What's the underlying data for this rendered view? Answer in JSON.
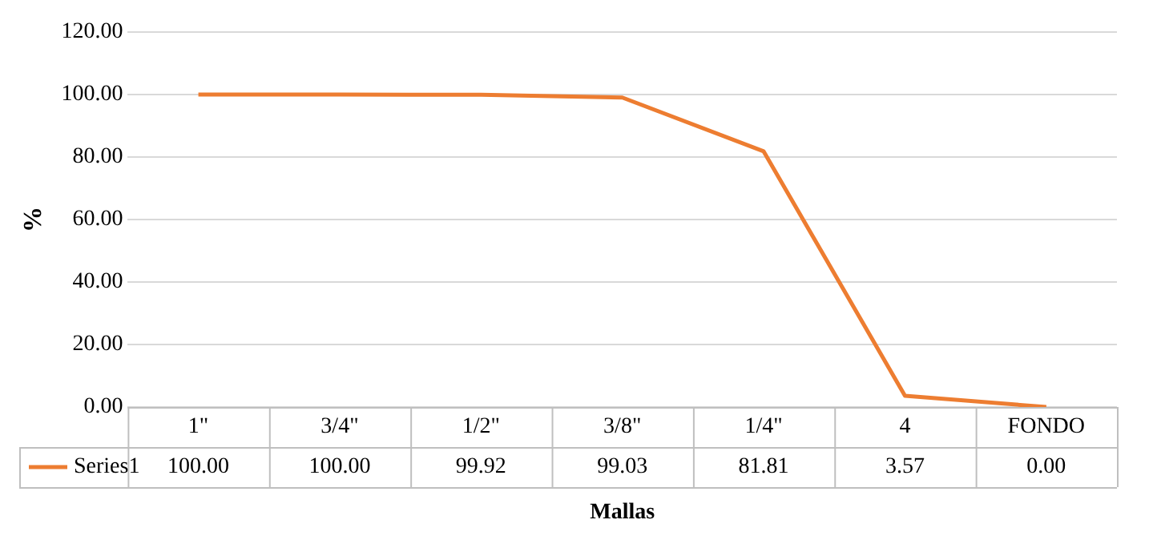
{
  "chart_data": {
    "type": "line",
    "xlabel": "Mallas",
    "ylabel": "%",
    "categories": [
      "1\"",
      "3/4\"",
      "1/2\"",
      "3/8\"",
      "1/4\"",
      "4",
      "FONDO"
    ],
    "series": [
      {
        "name": "Series1",
        "color": "#ed7d31",
        "values": [
          100,
          100,
          99.92,
          99.03,
          81.81,
          3.57,
          0
        ],
        "value_labels": [
          "100.00",
          "100.00",
          "99.92",
          "99.03",
          "81.81",
          "3.57",
          "0.00"
        ]
      }
    ],
    "ylim": [
      0,
      120
    ],
    "yticks": [
      {
        "value": 0,
        "label": "0.00"
      },
      {
        "value": 20,
        "label": "20.00"
      },
      {
        "value": 40,
        "label": "40.00"
      },
      {
        "value": 60,
        "label": "60.00"
      },
      {
        "value": 80,
        "label": "80.00"
      },
      {
        "value": 100,
        "label": "100.00"
      },
      {
        "value": 120,
        "label": "120.00"
      }
    ],
    "grid": "y",
    "legend": "bottom",
    "marker": "none",
    "line_style": "solid"
  }
}
